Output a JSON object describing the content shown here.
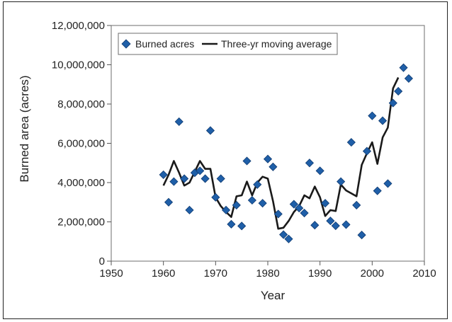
{
  "chart_data": {
    "type": "scatter",
    "title": "",
    "xlabel": "Year",
    "ylabel": "Burned area (acres)",
    "xlim": [
      1950,
      2010
    ],
    "ylim": [
      0,
      12000000
    ],
    "x_ticks": [
      "1950",
      "1960",
      "1970",
      "1980",
      "1990",
      "2000",
      "2010"
    ],
    "y_ticks": [
      "0",
      "2,000,000",
      "4,000,000",
      "6,000,000",
      "8,000,000",
      "10,000,000",
      "12,000,000"
    ],
    "legend_position": "top-left",
    "grid": false,
    "series": [
      {
        "name": "Burned acres",
        "kind": "scatter",
        "marker": "diamond",
        "color": "#1f5fa8",
        "points": [
          [
            1960,
            4400000
          ],
          [
            1961,
            3000000
          ],
          [
            1962,
            4050000
          ],
          [
            1963,
            7100000
          ],
          [
            1964,
            4200000
          ],
          [
            1965,
            2600000
          ],
          [
            1966,
            4500000
          ],
          [
            1967,
            4600000
          ],
          [
            1968,
            4200000
          ],
          [
            1969,
            6650000
          ],
          [
            1970,
            3250000
          ],
          [
            1971,
            4200000
          ],
          [
            1972,
            2600000
          ],
          [
            1973,
            1880000
          ],
          [
            1974,
            2850000
          ],
          [
            1975,
            1790000
          ],
          [
            1976,
            5100000
          ],
          [
            1977,
            3100000
          ],
          [
            1978,
            3900000
          ],
          [
            1979,
            2950000
          ],
          [
            1980,
            5200000
          ],
          [
            1981,
            4800000
          ],
          [
            1982,
            2400000
          ],
          [
            1983,
            1350000
          ],
          [
            1984,
            1130000
          ],
          [
            1985,
            2900000
          ],
          [
            1986,
            2700000
          ],
          [
            1987,
            2450000
          ],
          [
            1988,
            5000000
          ],
          [
            1989,
            1830000
          ],
          [
            1990,
            4600000
          ],
          [
            1991,
            2950000
          ],
          [
            1992,
            2050000
          ],
          [
            1993,
            1800000
          ],
          [
            1994,
            4050000
          ],
          [
            1995,
            1860000
          ],
          [
            1996,
            6050000
          ],
          [
            1997,
            2850000
          ],
          [
            1998,
            1330000
          ],
          [
            1999,
            5600000
          ],
          [
            2000,
            7400000
          ],
          [
            2001,
            3580000
          ],
          [
            2002,
            7150000
          ],
          [
            2003,
            3950000
          ],
          [
            2004,
            8050000
          ],
          [
            2005,
            8650000
          ],
          [
            2006,
            9850000
          ],
          [
            2007,
            9300000
          ]
        ]
      },
      {
        "name": "Three-yr moving average",
        "kind": "line",
        "color": "#1a1a1a",
        "points": [
          [
            1960,
            3850000
          ],
          [
            1961,
            4400000
          ],
          [
            1962,
            5100000
          ],
          [
            1963,
            4500000
          ],
          [
            1964,
            3850000
          ],
          [
            1965,
            4000000
          ],
          [
            1966,
            4550000
          ],
          [
            1967,
            5100000
          ],
          [
            1968,
            4700000
          ],
          [
            1969,
            4700000
          ],
          [
            1970,
            3250000
          ],
          [
            1971,
            2800000
          ],
          [
            1972,
            2500000
          ],
          [
            1973,
            2250000
          ],
          [
            1974,
            3300000
          ],
          [
            1975,
            3350000
          ],
          [
            1976,
            4050000
          ],
          [
            1977,
            3350000
          ],
          [
            1978,
            4000000
          ],
          [
            1979,
            4300000
          ],
          [
            1980,
            4200000
          ],
          [
            1981,
            3050000
          ],
          [
            1982,
            1650000
          ],
          [
            1983,
            1700000
          ],
          [
            1984,
            2050000
          ],
          [
            1985,
            2500000
          ],
          [
            1986,
            2800000
          ],
          [
            1987,
            3350000
          ],
          [
            1988,
            3200000
          ],
          [
            1989,
            3800000
          ],
          [
            1990,
            3250000
          ],
          [
            1991,
            2300000
          ],
          [
            1992,
            2600000
          ],
          [
            1993,
            2550000
          ],
          [
            1994,
            3900000
          ],
          [
            1995,
            3600000
          ],
          [
            1996,
            3450000
          ],
          [
            1997,
            3300000
          ],
          [
            1998,
            4900000
          ],
          [
            1999,
            5500000
          ],
          [
            2000,
            6050000
          ],
          [
            2001,
            4950000
          ],
          [
            2002,
            6300000
          ],
          [
            2003,
            6800000
          ],
          [
            2004,
            8800000
          ],
          [
            2005,
            9350000
          ]
        ]
      }
    ]
  }
}
